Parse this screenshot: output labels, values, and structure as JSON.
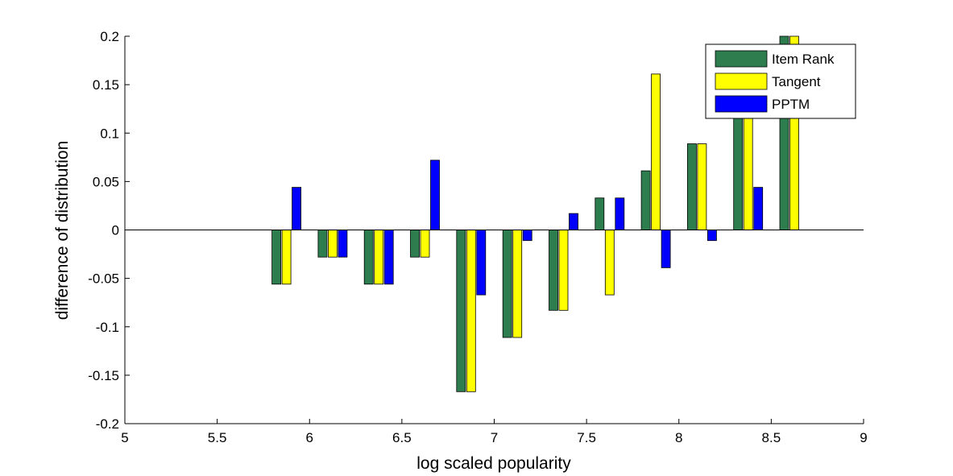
{
  "chart_data": {
    "type": "bar",
    "xlabel": "log scaled popularity",
    "ylabel": "difference of distribution",
    "xlim": [
      5,
      9
    ],
    "ylim": [
      -0.2,
      0.2
    ],
    "xticks": [
      5,
      5.5,
      6,
      6.5,
      7,
      7.5,
      8,
      8.5,
      9
    ],
    "xtick_labels": [
      "5",
      "5.5",
      "6",
      "6.5",
      "7",
      "7.5",
      "8",
      "8.5",
      "9"
    ],
    "yticks": [
      -0.2,
      -0.15,
      -0.1,
      -0.05,
      0,
      0.05,
      0.1,
      0.15,
      0.2
    ],
    "ytick_labels": [
      "-0.2",
      "-0.15",
      "-0.1",
      "-0.05",
      "0",
      "0.05",
      "0.1",
      "0.15",
      "0.2"
    ],
    "grid": false,
    "legend_position": "top-right",
    "x": [
      5.875,
      6.125,
      6.375,
      6.625,
      6.875,
      7.125,
      7.375,
      7.625,
      7.875,
      8.125,
      8.375,
      8.625
    ],
    "series": [
      {
        "name": "Item Rank",
        "color": "#2e7d4f",
        "values": [
          -0.056,
          -0.028,
          -0.056,
          -0.028,
          -0.167,
          -0.111,
          -0.083,
          0.033,
          0.061,
          0.089,
          0.125,
          0.2
        ]
      },
      {
        "name": "Tangent",
        "color": "#ffff00",
        "values": [
          -0.056,
          -0.028,
          -0.056,
          -0.028,
          -0.167,
          -0.111,
          -0.083,
          -0.067,
          0.161,
          0.089,
          0.125,
          0.2
        ]
      },
      {
        "name": "PPTM",
        "color": "#0000ff",
        "values": [
          0.044,
          -0.028,
          -0.056,
          0.072,
          -0.067,
          -0.011,
          0.017,
          0.033,
          -0.039,
          -0.011,
          0.044,
          0.0
        ]
      }
    ]
  }
}
